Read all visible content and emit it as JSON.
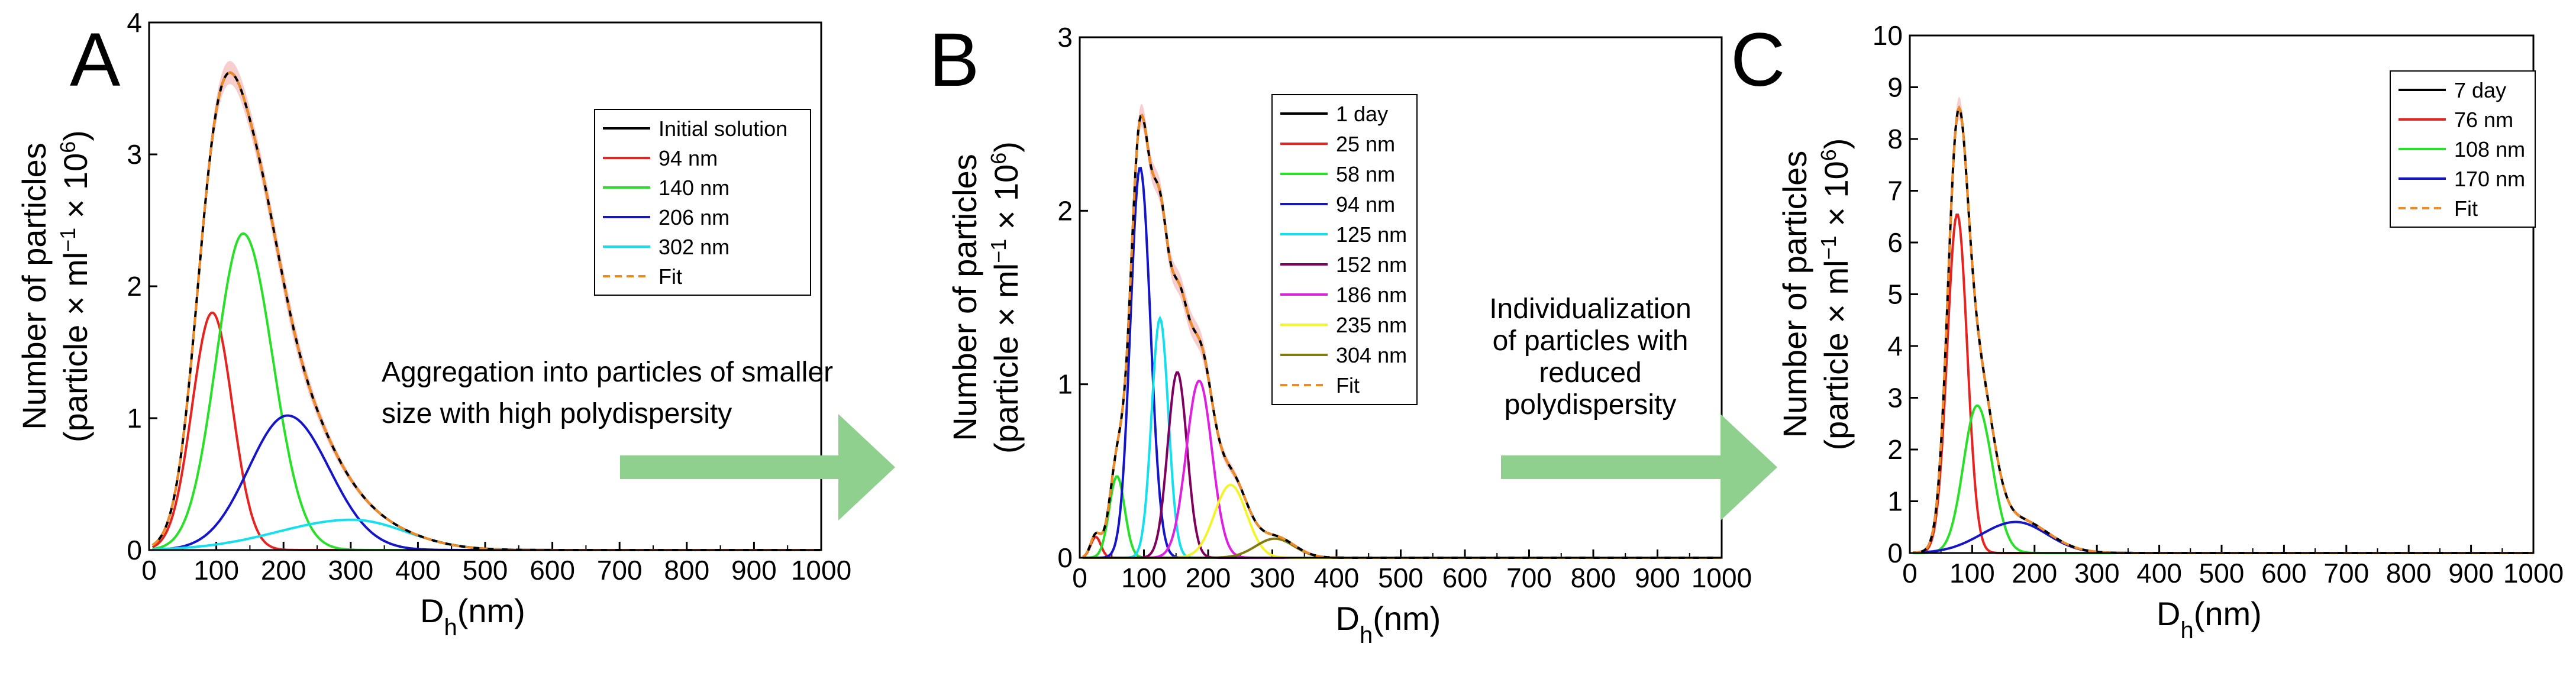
{
  "colors": {
    "black": "#000000",
    "red": "#e8231f",
    "green": "#27e027",
    "blue": "#1414c8",
    "cyan": "#12e0ee",
    "purple": "#800060",
    "magenta": "#e020e0",
    "yellow": "#f4f42a",
    "olive": "#807a10",
    "fit": "#f08a24",
    "band": "#f4b8b8",
    "arrow": "#8fd08f"
  },
  "annotations": [
    {
      "id": "ab",
      "lines": [
        "Aggregation into particles of smaller",
        "size with high polydispersity"
      ]
    },
    {
      "id": "bc",
      "lines": [
        "Individualization",
        "of particles with",
        "reduced",
        "polydispersity"
      ]
    }
  ],
  "chart_data": [
    {
      "panel": "A",
      "type": "line",
      "xlabel_main": "D",
      "xlabel_sub": "h",
      "xlabel_unit": "(nm)",
      "ylabel_line1": "Number of particles",
      "ylabel_line2_pre": "(particle × ml",
      "ylabel_exp1": "−1",
      "ylabel_mid": " × 10",
      "ylabel_exp2": "6",
      "ylabel_post": ")",
      "xlim": [
        0,
        1000
      ],
      "ylim": [
        0,
        4
      ],
      "xticks": [
        0,
        100,
        200,
        300,
        400,
        500,
        600,
        700,
        800,
        900,
        1000
      ],
      "yticks": [
        0,
        1,
        2,
        3,
        4
      ],
      "legend": [
        {
          "label": "Initial solution",
          "key": "black",
          "dash": false
        },
        {
          "label": "94 nm",
          "key": "red",
          "dash": false
        },
        {
          "label": "140 nm",
          "key": "green",
          "dash": false
        },
        {
          "label": "206 nm",
          "key": "blue",
          "dash": false
        },
        {
          "label": "302 nm",
          "key": "cyan",
          "dash": false
        },
        {
          "label": "Fit",
          "key": "fit",
          "dash": true
        }
      ],
      "components": [
        {
          "key": "red",
          "center": 94,
          "peak": 1.8,
          "sigma_left": 30,
          "sigma_right": 30
        },
        {
          "key": "green",
          "center": 140,
          "peak": 2.4,
          "sigma_left": 40,
          "sigma_right": 44
        },
        {
          "key": "blue",
          "center": 206,
          "peak": 1.02,
          "sigma_left": 58,
          "sigma_right": 62
        },
        {
          "key": "cyan",
          "center": 302,
          "peak": 0.23,
          "sigma_left": 110,
          "sigma_right": 80
        }
      ],
      "total": {
        "peak": 3.62,
        "peak_x": 125
      }
    },
    {
      "panel": "B",
      "type": "line",
      "xlabel_main": "D",
      "xlabel_sub": "h",
      "xlabel_unit": "(nm)",
      "ylabel_line1": "Number of particles",
      "ylabel_line2_pre": "(particle × ml",
      "ylabel_exp1": "−1",
      "ylabel_mid": " × 10",
      "ylabel_exp2": "6",
      "ylabel_post": ")",
      "xlim": [
        0,
        1000
      ],
      "ylim": [
        0,
        3
      ],
      "xticks": [
        0,
        100,
        200,
        300,
        400,
        500,
        600,
        700,
        800,
        900,
        1000
      ],
      "yticks": [
        0,
        1,
        2,
        3
      ],
      "legend": [
        {
          "label": "1 day",
          "key": "black",
          "dash": false
        },
        {
          "label": "25 nm",
          "key": "red",
          "dash": false
        },
        {
          "label": "58 nm",
          "key": "green",
          "dash": false
        },
        {
          "label": "94 nm",
          "key": "blue",
          "dash": false
        },
        {
          "label": "125 nm",
          "key": "cyan",
          "dash": false
        },
        {
          "label": "152 nm",
          "key": "purple",
          "dash": false
        },
        {
          "label": "186 nm",
          "key": "magenta",
          "dash": false
        },
        {
          "label": "235 nm",
          "key": "yellow",
          "dash": false
        },
        {
          "label": "304 nm",
          "key": "olive",
          "dash": false
        },
        {
          "label": "Fit",
          "key": "fit",
          "dash": true
        }
      ],
      "components": [
        {
          "key": "red",
          "center": 25,
          "peak": 0.12,
          "sigma_left": 8,
          "sigma_right": 8
        },
        {
          "key": "green",
          "center": 58,
          "peak": 0.47,
          "sigma_left": 12,
          "sigma_right": 12
        },
        {
          "key": "blue",
          "center": 94,
          "peak": 2.25,
          "sigma_left": 15,
          "sigma_right": 16
        },
        {
          "key": "cyan",
          "center": 125,
          "peak": 1.38,
          "sigma_left": 13,
          "sigma_right": 13
        },
        {
          "key": "purple",
          "center": 152,
          "peak": 1.07,
          "sigma_left": 15,
          "sigma_right": 15
        },
        {
          "key": "magenta",
          "center": 186,
          "peak": 1.02,
          "sigma_left": 20,
          "sigma_right": 20
        },
        {
          "key": "yellow",
          "center": 235,
          "peak": 0.42,
          "sigma_left": 25,
          "sigma_right": 25
        },
        {
          "key": "olive",
          "center": 304,
          "peak": 0.11,
          "sigma_left": 30,
          "sigma_right": 30
        }
      ],
      "total": {
        "peak": 2.55,
        "peak_x": 100
      }
    },
    {
      "panel": "C",
      "type": "line",
      "xlabel_main": "D",
      "xlabel_sub": "h",
      "xlabel_unit": "(nm)",
      "ylabel_line1": "Number of particles",
      "ylabel_line2_pre": "(particle × ml",
      "ylabel_exp1": "−1",
      "ylabel_mid": " × 10",
      "ylabel_exp2": "6",
      "ylabel_post": ")",
      "xlim": [
        0,
        1000
      ],
      "ylim": [
        0,
        10
      ],
      "xticks": [
        0,
        100,
        200,
        300,
        400,
        500,
        600,
        700,
        800,
        900,
        1000
      ],
      "yticks": [
        0,
        1,
        2,
        3,
        4,
        5,
        6,
        7,
        8,
        9,
        10
      ],
      "legend": [
        {
          "label": "7 day",
          "key": "black",
          "dash": false
        },
        {
          "label": "76 nm",
          "key": "red",
          "dash": false
        },
        {
          "label": "108 nm",
          "key": "green",
          "dash": false
        },
        {
          "label": "170 nm",
          "key": "blue",
          "dash": false
        },
        {
          "label": "Fit",
          "key": "fit",
          "dash": true
        }
      ],
      "components": [
        {
          "key": "red",
          "center": 76,
          "peak": 6.55,
          "sigma_left": 16,
          "sigma_right": 16
        },
        {
          "key": "green",
          "center": 108,
          "peak": 2.85,
          "sigma_left": 22,
          "sigma_right": 24
        },
        {
          "key": "blue",
          "center": 170,
          "peak": 0.6,
          "sigma_left": 55,
          "sigma_right": 50
        }
      ],
      "total": {
        "peak": 8.6,
        "peak_x": 82
      }
    }
  ]
}
